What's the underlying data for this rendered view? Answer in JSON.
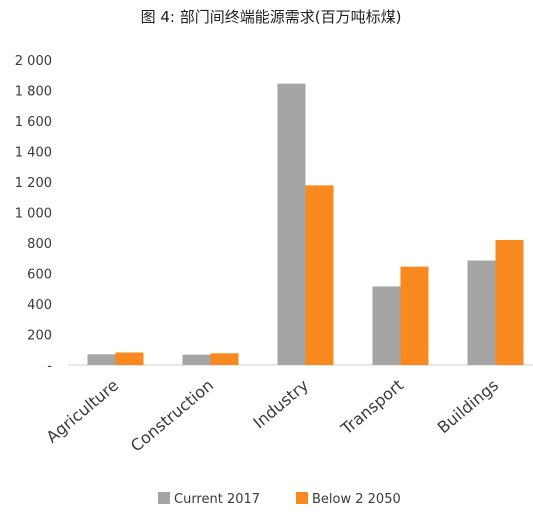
{
  "chart_data": {
    "type": "bar",
    "title": "图 4: 部门间终端能源需求(百万吨标煤)",
    "categories": [
      "Agriculture",
      "Construction",
      "Industry",
      "Transport",
      "Buildings"
    ],
    "series": [
      {
        "name": "Current  2017",
        "values": [
          70,
          68,
          1845,
          515,
          685
        ]
      },
      {
        "name": "Below 2 2050",
        "values": [
          82,
          77,
          1178,
          645,
          820
        ]
      }
    ],
    "ylim": [
      0,
      2000
    ],
    "yticks": [
      0,
      200,
      400,
      600,
      800,
      1000,
      1200,
      1400,
      1600,
      1800,
      2000
    ],
    "ytick_labels": [
      "-",
      "200",
      "400",
      "600",
      "800",
      "1 000",
      "1 200",
      "1 400",
      "1 600",
      "1 800",
      "2 000"
    ],
    "grid": false,
    "legend": "bottom",
    "colors": [
      "#a5a5a5",
      "#f7891f"
    ]
  }
}
